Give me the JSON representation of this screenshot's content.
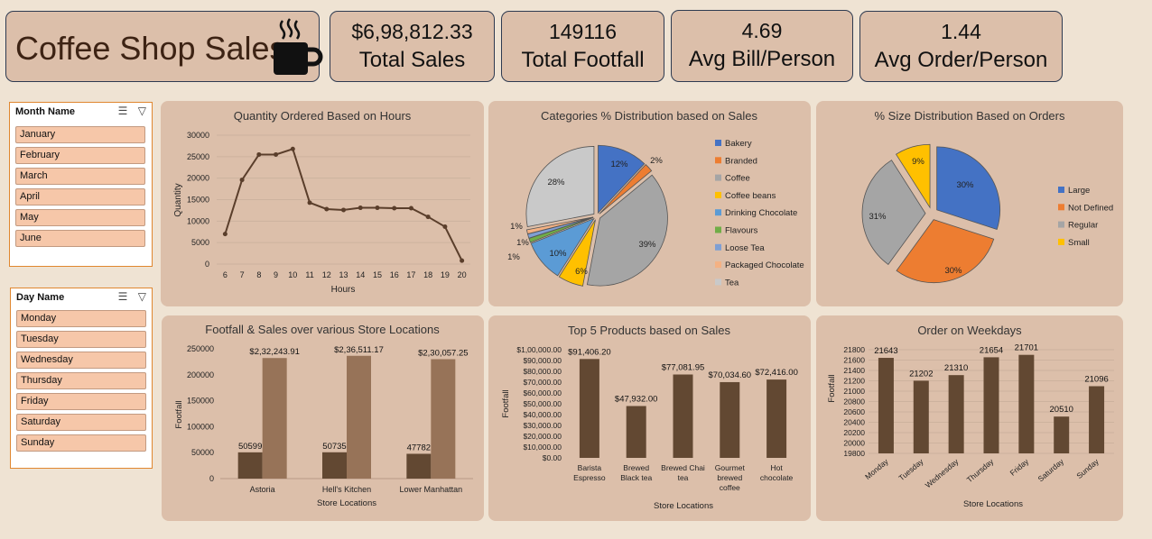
{
  "header": {
    "title": "Coffee Shop Sales",
    "kpis": [
      {
        "value": "$6,98,812.33",
        "label": "Total Sales"
      },
      {
        "value": "149116",
        "label": "Total Footfall"
      },
      {
        "value": "4.69",
        "label": "Avg Bill/Person"
      },
      {
        "value": "1.44",
        "label": "Avg Order/Person"
      }
    ]
  },
  "slicers": {
    "month": {
      "title": "Month Name",
      "items": [
        "January",
        "February",
        "March",
        "April",
        "May",
        "June"
      ]
    },
    "day": {
      "title": "Day Name",
      "items": [
        "Monday",
        "Tuesday",
        "Wednesday",
        "Thursday",
        "Friday",
        "Saturday",
        "Sunday"
      ]
    }
  },
  "colors": {
    "bar_dark": "#624832",
    "bar_light": "#977358",
    "panel": "#dcbfaa",
    "line": "#5a3e2b"
  },
  "chart_data": [
    {
      "id": "hours",
      "type": "line",
      "title": "Quantity Ordered Based on Hours",
      "xlabel": "Hours",
      "ylabel": "Quantity",
      "x": [
        6,
        7,
        8,
        9,
        10,
        11,
        12,
        13,
        14,
        15,
        16,
        17,
        18,
        19,
        20
      ],
      "values": [
        7000,
        19600,
        25500,
        25500,
        26800,
        14300,
        12800,
        12600,
        13100,
        13100,
        13000,
        13000,
        11000,
        8700,
        800
      ],
      "yticks": [
        "0",
        "5000",
        "10000",
        "15000",
        "20000",
        "25000",
        "30000"
      ],
      "ylim": [
        0,
        30000
      ],
      "grid": true
    },
    {
      "id": "categories",
      "type": "pie",
      "title": "Categories % Distribution based on Sales",
      "categories": [
        "Bakery",
        "Branded",
        "Coffee",
        "Coffee beans",
        "Drinking Chocolate",
        "Flavours",
        "Loose Tea",
        "Packaged Chocolate",
        "Tea"
      ],
      "values": [
        12,
        2,
        39,
        6,
        10,
        1,
        1,
        1,
        28
      ],
      "labels": [
        "12%",
        "2%",
        "39%",
        "6%",
        "10%",
        "1%",
        "1%",
        "1%",
        "28%"
      ],
      "colors": [
        "#4472c4",
        "#ed7d31",
        "#a5a5a5",
        "#ffc000",
        "#5b9bd5",
        "#70ad47",
        "#7f9fd3",
        "#f4b183",
        "#c9c9c9"
      ],
      "legend": "right"
    },
    {
      "id": "sizes",
      "type": "pie",
      "title": "% Size Distribution Based on Orders",
      "categories": [
        "Large",
        "Not Defined",
        "Regular",
        "Small"
      ],
      "values": [
        30,
        30,
        31,
        9
      ],
      "labels": [
        "30%",
        "30%",
        "31%",
        "9%"
      ],
      "colors": [
        "#4472c4",
        "#ed7d31",
        "#a5a5a5",
        "#ffc000"
      ],
      "legend": "right"
    },
    {
      "id": "locations",
      "type": "bar",
      "title": "Footfall & Sales over various Store Locations",
      "xlabel": "Store Locations",
      "ylabel": "Footfall",
      "categories": [
        "Astoria",
        "Hell's Kitchen",
        "Lower Manhattan"
      ],
      "series": [
        {
          "values": [
            50599,
            50735,
            47782
          ],
          "labels": [
            "50599",
            "50735",
            "47782"
          ]
        },
        {
          "values": [
            232243.91,
            236511.17,
            230057.25
          ],
          "labels": [
            "$2,32,243.91",
            "$2,36,511.17",
            "$2,30,057.25"
          ]
        }
      ],
      "yticks": [
        "0",
        "50000",
        "100000",
        "150000",
        "200000",
        "250000"
      ],
      "ylim": [
        0,
        250000
      ]
    },
    {
      "id": "products",
      "type": "bar",
      "title": "Top 5 Products based on Sales",
      "xlabel": "Store Locations",
      "ylabel": "Footfall",
      "categories": [
        [
          "Barista",
          "Espresso"
        ],
        [
          "Brewed",
          "Black tea"
        ],
        [
          "Brewed Chai",
          "tea"
        ],
        [
          "Gourmet",
          "brewed",
          "coffee"
        ],
        [
          "Hot",
          "chocolate"
        ]
      ],
      "values": [
        91406.2,
        47932,
        77081.95,
        70034.6,
        72416
      ],
      "labels": [
        "$91,406.20",
        "$47,932.00",
        "$77,081.95",
        "$70,034.60",
        "$72,416.00"
      ],
      "yticks": [
        "$0.00",
        "$10,000.00",
        "$20,000.00",
        "$30,000.00",
        "$40,000.00",
        "$50,000.00",
        "$60,000.00",
        "$70,000.00",
        "$80,000.00",
        "$90,000.00",
        "$1,00,000.00"
      ],
      "ylim": [
        0,
        100000
      ]
    },
    {
      "id": "weekdays",
      "type": "bar",
      "title": "Order on Weekdays",
      "xlabel": "Store Locations",
      "ylabel": "Footfall",
      "categories": [
        "Monday",
        "Tuesday",
        "Wednesday",
        "Thursday",
        "Friday",
        "Saturday",
        "Sunday"
      ],
      "values": [
        21643,
        21202,
        21310,
        21654,
        21701,
        20510,
        21096
      ],
      "labels": [
        "21643",
        "21202",
        "21310",
        "21654",
        "21701",
        "20510",
        "21096"
      ],
      "yticks": [
        "19800",
        "20000",
        "20200",
        "20400",
        "20600",
        "20800",
        "21000",
        "21200",
        "21400",
        "21600",
        "21800"
      ],
      "ylim": [
        19800,
        21800
      ],
      "grid": true
    }
  ]
}
